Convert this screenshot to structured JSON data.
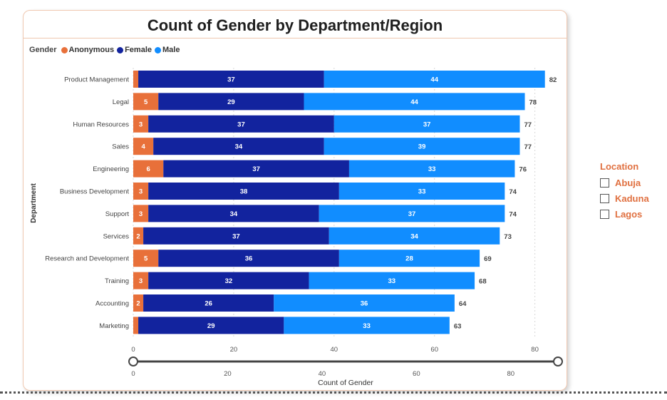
{
  "visual": {
    "title": "Count of Gender by Department/Region"
  },
  "legend": {
    "title": "Gender",
    "items": [
      {
        "label": "Anonymous",
        "color": "#e8703a"
      },
      {
        "label": "Female",
        "color": "#12239e"
      },
      {
        "label": "Male",
        "color": "#118dff"
      }
    ]
  },
  "slicer": {
    "title": "Location",
    "options": [
      "Abuja",
      "Kaduna",
      "Lagos"
    ]
  },
  "chart_data": {
    "type": "bar",
    "orientation": "horizontal",
    "stacked": true,
    "title": "Count of Gender by Department/Region",
    "xlabel": "Count of Gender",
    "ylabel": "Department",
    "xlim": [
      0,
      85
    ],
    "xticks": [
      0,
      20,
      40,
      60,
      80
    ],
    "grid": true,
    "legend_position": "top-left",
    "categories": [
      "Product Management",
      "Legal",
      "Human Resources",
      "Sales",
      "Engineering",
      "Business Development",
      "Support",
      "Services",
      "Research and Development",
      "Training",
      "Accounting",
      "Marketing"
    ],
    "series": [
      {
        "name": "Anonymous",
        "color": "#e8703a",
        "values": [
          1,
          5,
          3,
          4,
          6,
          3,
          3,
          2,
          5,
          3,
          2,
          1
        ],
        "show_labels": [
          false,
          true,
          true,
          true,
          true,
          true,
          true,
          true,
          true,
          true,
          true,
          false
        ]
      },
      {
        "name": "Female",
        "color": "#12239e",
        "values": [
          37,
          29,
          37,
          34,
          37,
          38,
          34,
          37,
          36,
          32,
          26,
          29
        ]
      },
      {
        "name": "Male",
        "color": "#118dff",
        "values": [
          44,
          44,
          37,
          39,
          33,
          33,
          37,
          34,
          28,
          33,
          36,
          33
        ]
      }
    ],
    "totals": [
      82,
      78,
      77,
      77,
      76,
      74,
      74,
      73,
      69,
      68,
      64,
      63
    ],
    "slider": {
      "ticks": [
        0,
        20,
        40,
        60,
        80
      ],
      "range": [
        0,
        90
      ]
    }
  }
}
